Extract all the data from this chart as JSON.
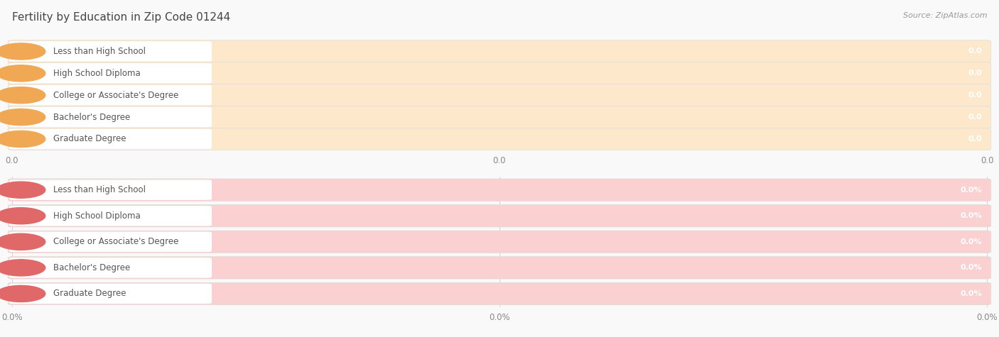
{
  "title": "Fertility by Education in Zip Code 01244",
  "source": "Source: ZipAtlas.com",
  "categories": [
    "Less than High School",
    "High School Diploma",
    "College or Associate's Degree",
    "Bachelor's Degree",
    "Graduate Degree"
  ],
  "top_values": [
    0.0,
    0.0,
    0.0,
    0.0,
    0.0
  ],
  "top_label_suffix": "",
  "bottom_values": [
    0.0,
    0.0,
    0.0,
    0.0,
    0.0
  ],
  "bottom_label_suffix": "%",
  "top_bar_fill_color": "#f5c99a",
  "top_bar_bg_color": "#fde8cc",
  "top_white_pill_color": "#ffffff",
  "top_accent_color": "#f0a855",
  "bottom_bar_fill_color": "#f09090",
  "bottom_bar_bg_color": "#fad0d0",
  "bottom_white_pill_color": "#ffffff",
  "bottom_accent_color": "#e06868",
  "section_bg_color": "#f0f0f0",
  "background_color": "#f9f9f9",
  "title_fontsize": 11,
  "label_fontsize": 8.5,
  "value_fontsize": 8,
  "tick_fontsize": 8.5,
  "source_fontsize": 8
}
